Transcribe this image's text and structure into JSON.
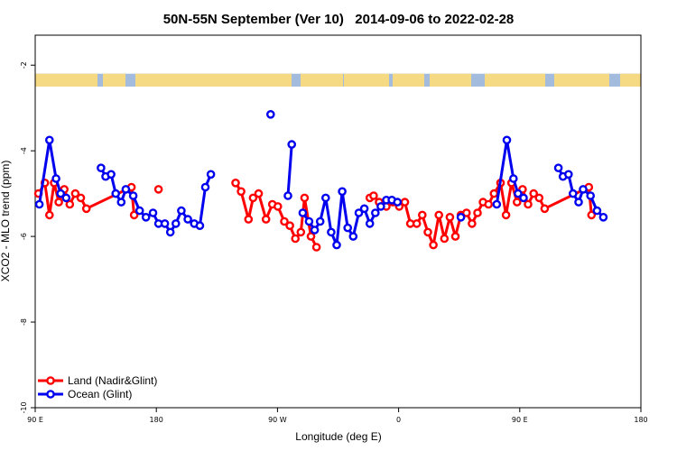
{
  "chart_data": {
    "type": "line",
    "title": "50N-55N September (Ver 10)   2014-09-06 to 2022-02-28",
    "xlabel": "Longitude (deg E)",
    "ylabel": "XCO2 - MLO trend (ppm)",
    "xlim": [
      90,
      540
    ],
    "ylim": [
      -10,
      -1.3
    ],
    "x_ticks": [
      {
        "value": 90,
        "label": "90 E"
      },
      {
        "value": 180,
        "label": "180"
      },
      {
        "value": 270,
        "label": "90 W"
      },
      {
        "value": 360,
        "label": "0"
      },
      {
        "value": 450,
        "label": "90 E"
      },
      {
        "value": 540,
        "label": "180"
      }
    ],
    "y_ticks": [
      {
        "value": -2,
        "label": "-2"
      },
      {
        "value": -4,
        "label": "-4"
      },
      {
        "value": -6,
        "label": "-6"
      },
      {
        "value": -8,
        "label": "-8"
      },
      {
        "value": -10,
        "label": "-10"
      }
    ],
    "land_band": {
      "y_top": -2.2,
      "y_bottom": -2.5,
      "ocean_color": "#a3bbdc",
      "land_color": "#f6d983"
    },
    "legend_position": "bottom-left",
    "series": [
      {
        "name": "Land (Nadir&Glint)",
        "color": "#ff0000",
        "segments": [
          [
            [
              92.4,
              -5.0
            ],
            [
              97.2,
              -4.75
            ],
            [
              100.6,
              -5.5
            ],
            [
              104.1,
              -4.75
            ],
            [
              107.5,
              -5.2
            ],
            [
              111.6,
              -4.9
            ],
            [
              115.7,
              -5.25
            ],
            [
              119.8,
              -5.0
            ],
            [
              123.9,
              -5.1
            ],
            [
              128.0,
              -5.35
            ],
            [
              161.5,
              -4.85
            ],
            [
              163.5,
              -5.5
            ]
          ],
          [
            [
              181.6,
              -4.9
            ]
          ],
          [
            [
              238.9,
              -4.75
            ],
            [
              243.0,
              -4.95
            ],
            [
              248.5,
              -5.6
            ],
            [
              251.9,
              -5.1
            ],
            [
              256.0,
              -5.0
            ],
            [
              261.5,
              -5.6
            ],
            [
              266.2,
              -5.25
            ],
            [
              270.3,
              -5.3
            ],
            [
              275.1,
              -5.65
            ],
            [
              279.2,
              -5.75
            ],
            [
              283.3,
              -6.05
            ],
            [
              287.4,
              -5.9
            ],
            [
              290.1,
              -5.1
            ],
            [
              294.9,
              -6.0
            ],
            [
              299.0,
              -6.25
            ]
          ],
          [
            [
              338.6,
              -5.1
            ],
            [
              341.4,
              -5.05
            ],
            [
              345.5,
              -5.2
            ],
            [
              350.9,
              -5.3
            ],
            [
              355.7,
              -5.2
            ],
            [
              360.5,
              -5.3
            ],
            [
              364.6,
              -5.2
            ],
            [
              368.7,
              -5.7
            ],
            [
              373.5,
              -5.7
            ],
            [
              377.6,
              -5.5
            ],
            [
              381.7,
              -5.9
            ],
            [
              385.8,
              -6.2
            ],
            [
              389.9,
              -5.5
            ],
            [
              394.0,
              -6.05
            ],
            [
              398.1,
              -5.55
            ],
            [
              402.2,
              -6.0
            ],
            [
              406.3,
              -5.5
            ],
            [
              410.4,
              -5.45
            ],
            [
              414.5,
              -5.7
            ],
            [
              418.6,
              -5.45
            ],
            [
              422.7,
              -5.2
            ],
            [
              426.8,
              -5.25
            ],
            [
              430.9,
              -5.0
            ],
            [
              435.7,
              -4.75
            ],
            [
              439.8,
              -5.5
            ],
            [
              443.9,
              -4.75
            ],
            [
              448.0,
              -5.2
            ],
            [
              452.1,
              -4.9
            ],
            [
              456.2,
              -5.25
            ],
            [
              460.3,
              -5.0
            ],
            [
              464.4,
              -5.1
            ],
            [
              468.5,
              -5.35
            ],
            [
              501.3,
              -4.85
            ],
            [
              503.3,
              -5.5
            ]
          ]
        ]
      },
      {
        "name": "Ocean (Glint)",
        "color": "#0000ee",
        "segments": [
          [
            [
              93.1,
              -5.25
            ],
            [
              100.6,
              -3.75
            ],
            [
              105.5,
              -4.65
            ],
            [
              108.9,
              -5.0
            ],
            [
              113.0,
              -5.1
            ]
          ],
          [
            [
              138.9,
              -4.4
            ],
            [
              142.3,
              -4.6
            ],
            [
              146.4,
              -4.55
            ],
            [
              149.8,
              -5.0
            ],
            [
              153.9,
              -5.2
            ],
            [
              157.3,
              -4.9
            ],
            [
              162.8,
              -5.05
            ],
            [
              167.6,
              -5.4
            ],
            [
              172.3,
              -5.55
            ],
            [
              177.5,
              -5.45
            ],
            [
              181.6,
              -5.7
            ],
            [
              186.3,
              -5.7
            ],
            [
              190.4,
              -5.9
            ],
            [
              194.5,
              -5.7
            ],
            [
              198.6,
              -5.4
            ],
            [
              203.4,
              -5.6
            ],
            [
              208.2,
              -5.7
            ],
            [
              212.3,
              -5.75
            ],
            [
              216.4,
              -4.85
            ],
            [
              220.5,
              -4.55
            ]
          ],
          [
            [
              264.9,
              -3.15
            ]
          ],
          [
            [
              277.8,
              -5.05
            ],
            [
              280.6,
              -3.85
            ]
          ],
          [
            [
              288.8,
              -5.45
            ],
            [
              293.5,
              -5.65
            ],
            [
              297.6,
              -5.85
            ],
            [
              301.7,
              -5.65
            ],
            [
              305.8,
              -5.1
            ],
            [
              309.9,
              -5.9
            ],
            [
              314.0,
              -6.2
            ],
            [
              318.1,
              -4.95
            ],
            [
              322.2,
              -5.8
            ],
            [
              326.3,
              -6.0
            ],
            [
              330.4,
              -5.45
            ],
            [
              334.5,
              -5.35
            ],
            [
              338.6,
              -5.7
            ],
            [
              342.7,
              -5.45
            ],
            [
              346.8,
              -5.3
            ],
            [
              350.9,
              -5.15
            ],
            [
              355.0,
              -5.15
            ],
            [
              359.1,
              -5.2
            ]
          ],
          [
            [
              406.3,
              -5.55
            ]
          ],
          [
            [
              432.9,
              -5.25
            ],
            [
              440.4,
              -3.75
            ],
            [
              445.3,
              -4.65
            ],
            [
              448.7,
              -5.0
            ],
            [
              452.8,
              -5.1
            ]
          ],
          [
            [
              478.7,
              -4.4
            ],
            [
              482.1,
              -4.6
            ],
            [
              486.2,
              -4.55
            ],
            [
              489.6,
              -5.0
            ],
            [
              493.7,
              -5.2
            ],
            [
              497.1,
              -4.9
            ],
            [
              502.6,
              -5.05
            ],
            [
              507.4,
              -5.4
            ],
            [
              512.1,
              -5.55
            ]
          ]
        ]
      }
    ]
  }
}
